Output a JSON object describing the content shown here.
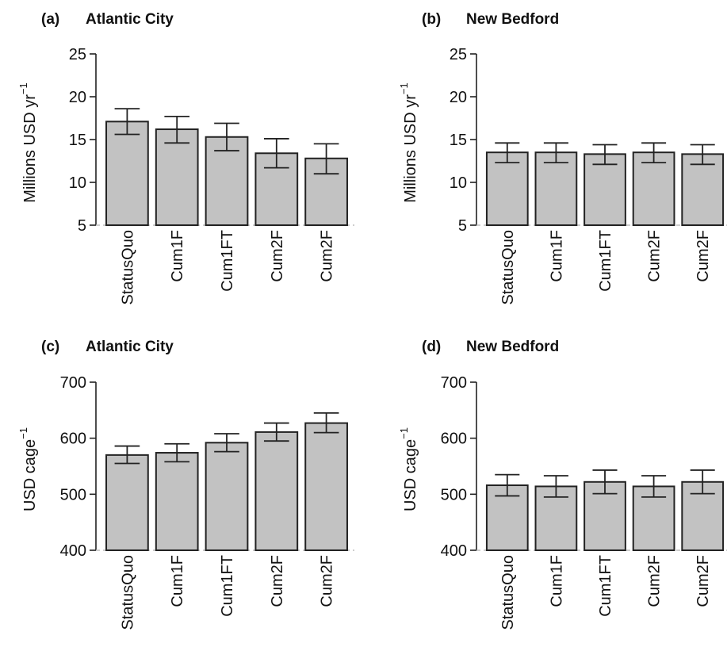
{
  "chart_data": [
    {
      "panel_label": "(a)",
      "title": "Atlantic City",
      "type": "bar",
      "categories": [
        "StatusQuo",
        "Cum1F",
        "Cum1FT",
        "Cum2F",
        "Cum2F"
      ],
      "values": [
        17.1,
        16.2,
        15.3,
        13.4,
        12.8
      ],
      "error_low": [
        15.6,
        14.6,
        13.7,
        11.7,
        11.0
      ],
      "error_high": [
        18.6,
        17.7,
        16.9,
        15.1,
        14.5
      ],
      "ylabel": "Millions USD yr",
      "ylabel_sup": "−1",
      "ylim": [
        5,
        25
      ],
      "yticks": [
        "5",
        "10",
        "15",
        "20",
        "25"
      ],
      "ytick_values": [
        5,
        10,
        15,
        20,
        25
      ],
      "grid": false
    },
    {
      "panel_label": "(b)",
      "title": "New Bedford",
      "type": "bar",
      "categories": [
        "StatusQuo",
        "Cum1F",
        "Cum1FT",
        "Cum2F",
        "Cum2F"
      ],
      "values": [
        13.5,
        13.5,
        13.3,
        13.5,
        13.3
      ],
      "error_low": [
        12.3,
        12.3,
        12.1,
        12.3,
        12.1
      ],
      "error_high": [
        14.6,
        14.6,
        14.4,
        14.6,
        14.4
      ],
      "ylabel": "Millions USD yr",
      "ylabel_sup": "−1",
      "ylim": [
        5,
        25
      ],
      "yticks": [
        "5",
        "10",
        "15",
        "20",
        "25"
      ],
      "ytick_values": [
        5,
        10,
        15,
        20,
        25
      ],
      "grid": false
    },
    {
      "panel_label": "(c)",
      "title": "Atlantic City",
      "type": "bar",
      "categories": [
        "StatusQuo",
        "Cum1F",
        "Cum1FT",
        "Cum2F",
        "Cum2F"
      ],
      "values": [
        570,
        574,
        592,
        611,
        627
      ],
      "error_low": [
        555,
        558,
        576,
        595,
        610
      ],
      "error_high": [
        586,
        590,
        608,
        627,
        645
      ],
      "ylabel": "USD cage",
      "ylabel_sup": "−1",
      "ylim": [
        400,
        700
      ],
      "yticks": [
        "400",
        "500",
        "600",
        "700"
      ],
      "ytick_values": [
        400,
        500,
        600,
        700
      ],
      "grid": false
    },
    {
      "panel_label": "(d)",
      "title": "New Bedford",
      "type": "bar",
      "categories": [
        "StatusQuo",
        "Cum1F",
        "Cum1FT",
        "Cum2F",
        "Cum2F"
      ],
      "values": [
        516,
        514,
        522,
        514,
        522
      ],
      "error_low": [
        497,
        495,
        501,
        495,
        501
      ],
      "error_high": [
        535,
        533,
        543,
        533,
        543
      ],
      "ylabel": "USD cage",
      "ylabel_sup": "−1",
      "ylim": [
        400,
        700
      ],
      "yticks": [
        "400",
        "500",
        "600",
        "700"
      ],
      "ytick_values": [
        400,
        500,
        600,
        700
      ],
      "grid": false
    }
  ]
}
